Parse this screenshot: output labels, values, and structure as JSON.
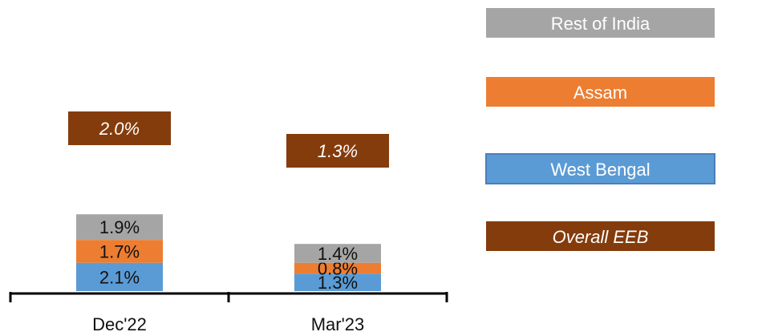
{
  "chart_data": {
    "type": "bar",
    "stacked": true,
    "categories": [
      "Dec'22",
      "Mar'23"
    ],
    "series": [
      {
        "name": "West Bengal",
        "color": "#5B9BD5",
        "values": [
          2.1,
          1.3
        ],
        "labels": [
          "2.1%",
          "1.3%"
        ]
      },
      {
        "name": "Assam",
        "color": "#ED7D31",
        "values": [
          1.7,
          0.8
        ],
        "labels": [
          "1.7%",
          "0.8%"
        ]
      },
      {
        "name": "Rest of India",
        "color": "#A5A5A5",
        "values": [
          1.9,
          1.4
        ],
        "labels": [
          "1.9%",
          "1.4%"
        ]
      }
    ],
    "overall": {
      "name": "Overall EEB",
      "color": "#843C0C",
      "values": [
        2.0,
        1.3
      ],
      "labels": [
        "2.0%",
        "1.3%"
      ]
    },
    "legend": {
      "placement": "right",
      "order": [
        "Rest of India",
        "Assam",
        "West Bengal",
        "Overall EEB"
      ]
    },
    "title": "",
    "xlabel": "",
    "ylabel": "",
    "grid": false
  }
}
